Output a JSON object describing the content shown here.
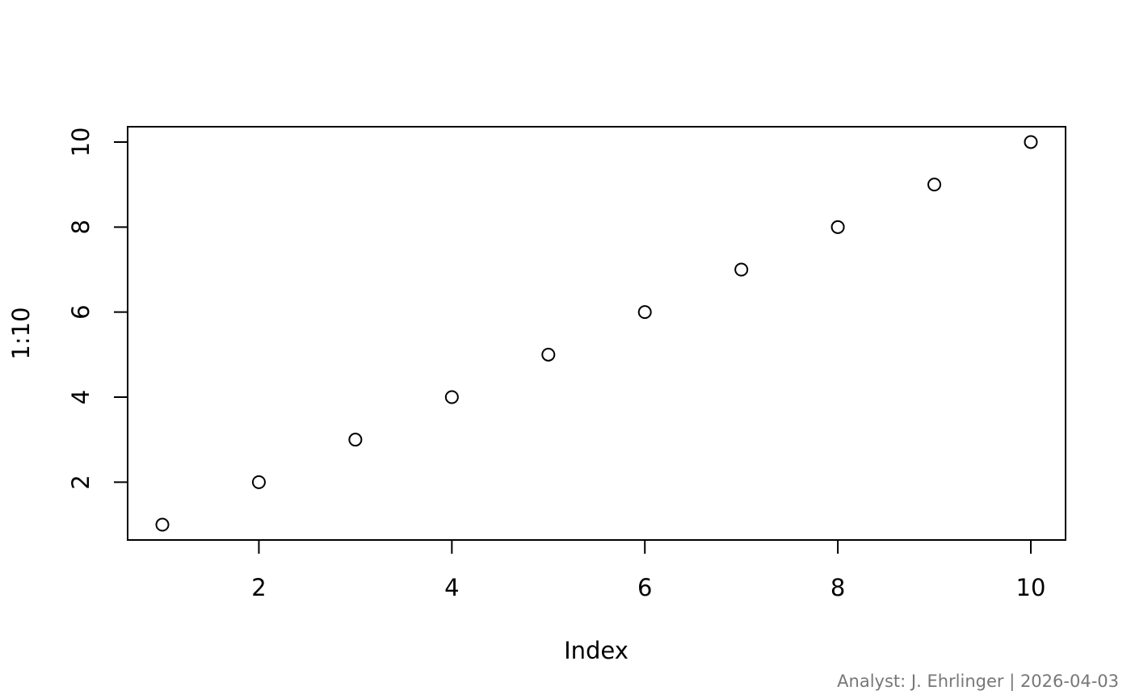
{
  "chart_data": {
    "type": "scatter",
    "x": [
      1,
      2,
      3,
      4,
      5,
      6,
      7,
      8,
      9,
      10
    ],
    "values": [
      1,
      2,
      3,
      4,
      5,
      6,
      7,
      8,
      9,
      10
    ],
    "color": "#000000",
    "x_label": "Index",
    "y_label": "1:10",
    "xlim": [
      0.64,
      10.36
    ],
    "ylim": [
      0.64,
      10.36
    ],
    "xticks": [
      2,
      4,
      6,
      8,
      10
    ],
    "yticks": [
      2,
      4,
      6,
      8,
      10
    ],
    "grid": false,
    "caption": "Analyst: J. Ehrlinger | 2026-04-03"
  }
}
